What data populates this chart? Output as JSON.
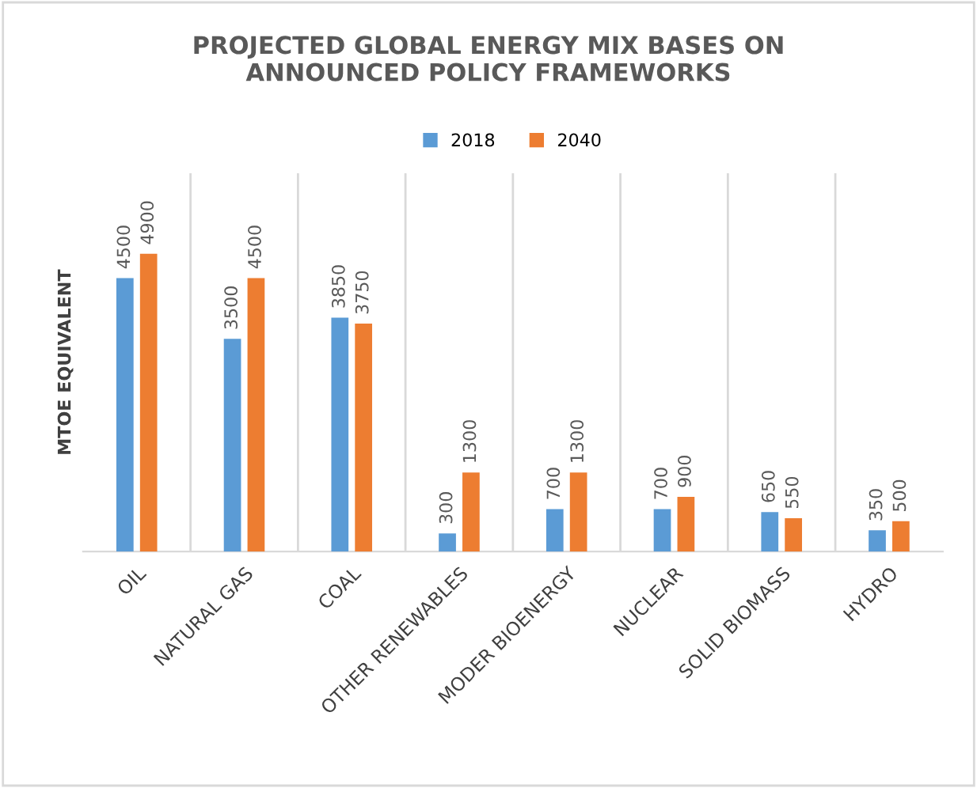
{
  "chart_data": {
    "type": "bar",
    "title": "PROJECTED GLOBAL ENERGY MIX BASES ON\nANNOUNCED POLICY FRAMEWORKS",
    "ylabel": "MTOE EQUIVALENT",
    "categories": [
      "OIL",
      "NATURAL GAS",
      "COAL",
      "OTHER RENEWABLES",
      "MODER BIOENERGY",
      "NUCLEAR",
      "SOLID BIOMASS",
      "HYDRO"
    ],
    "series": [
      {
        "name": "2018",
        "color": "#5b9bd5",
        "values": [
          4500,
          3500,
          3850,
          300,
          700,
          700,
          650,
          350
        ]
      },
      {
        "name": "2040",
        "color": "#ed7d31",
        "values": [
          4900,
          4500,
          3750,
          1300,
          1300,
          900,
          550,
          500
        ]
      }
    ],
    "data_labels": true,
    "legend": "top",
    "grid": "x",
    "tick_labels": "x"
  }
}
